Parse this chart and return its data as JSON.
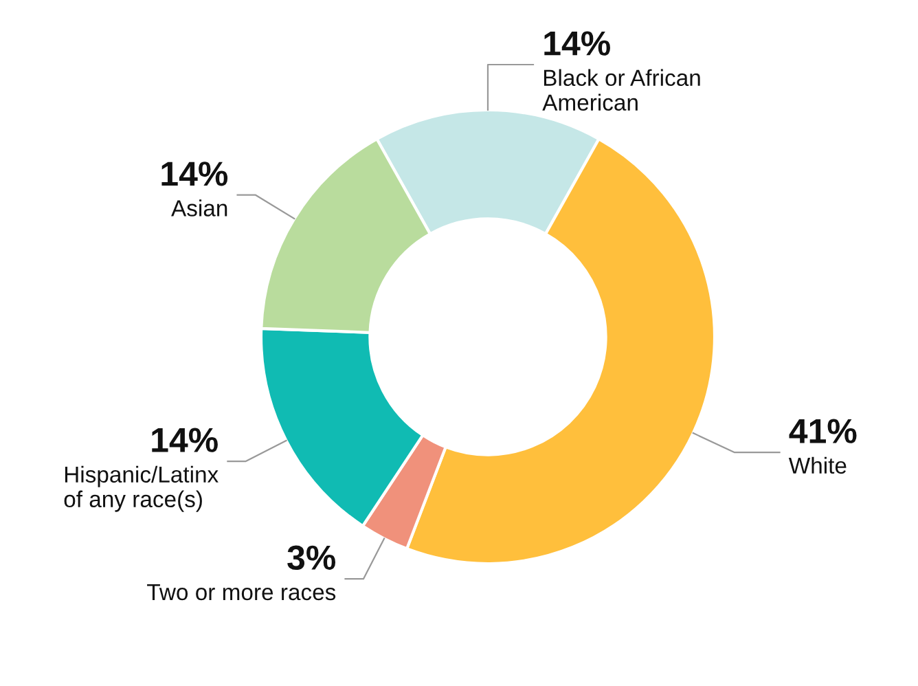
{
  "chart_data": {
    "type": "donut",
    "categories": [
      "Black or African\nAmerican",
      "White",
      "Two or more races",
      "Hispanic/Latinx\nof any race(s)",
      "Asian"
    ],
    "values": [
      14,
      41,
      3,
      14,
      14
    ],
    "colors": [
      "#c5e7e7",
      "#ffbf3c",
      "#f0917b",
      "#10bbb3",
      "#b9dc9d"
    ],
    "value_labels": [
      "14%",
      "41%",
      "3%",
      "14%",
      "14%"
    ],
    "legend": false
  }
}
